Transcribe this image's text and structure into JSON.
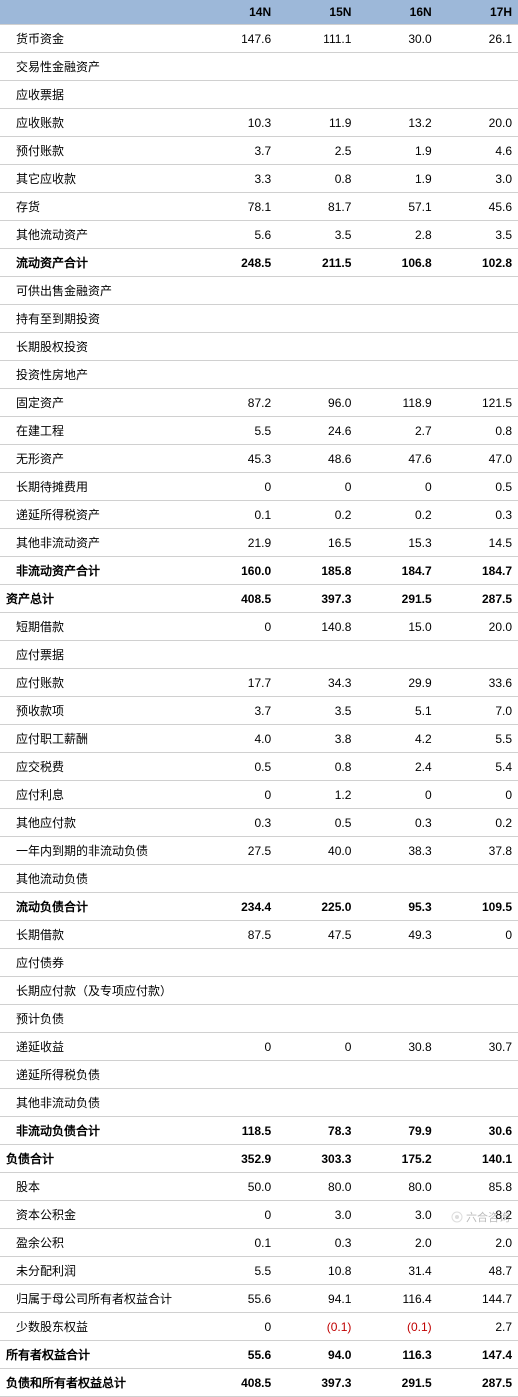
{
  "table": {
    "header_bg": "#9db8d9",
    "row_line_color": "#d0d0d0",
    "text_color": "#000000",
    "neg_color": "#c00000",
    "col_widths": [
      "38%",
      "15.5%",
      "15.5%",
      "15.5%",
      "15.5%"
    ],
    "columns": [
      "",
      "14N",
      "15N",
      "16N",
      "17H"
    ],
    "rows": [
      {
        "label": "货币资金",
        "vals": [
          "147.6",
          "111.1",
          "30.0",
          "26.1"
        ],
        "indent": true
      },
      {
        "label": "交易性金融资产",
        "vals": [
          "",
          "",
          "",
          ""
        ],
        "indent": true
      },
      {
        "label": "应收票据",
        "vals": [
          "",
          "",
          "",
          ""
        ],
        "indent": true
      },
      {
        "label": "应收账款",
        "vals": [
          "10.3",
          "11.9",
          "13.2",
          "20.0"
        ],
        "indent": true
      },
      {
        "label": "预付账款",
        "vals": [
          "3.7",
          "2.5",
          "1.9",
          "4.6"
        ],
        "indent": true
      },
      {
        "label": "其它应收款",
        "vals": [
          "3.3",
          "0.8",
          "1.9",
          "3.0"
        ],
        "indent": true
      },
      {
        "label": "存货",
        "vals": [
          "78.1",
          "81.7",
          "57.1",
          "45.6"
        ],
        "indent": true
      },
      {
        "label": "其他流动资产",
        "vals": [
          "5.6",
          "3.5",
          "2.8",
          "3.5"
        ],
        "indent": true
      },
      {
        "label": "流动资产合计",
        "vals": [
          "248.5",
          "211.5",
          "106.8",
          "102.8"
        ],
        "bold": true,
        "indent": true
      },
      {
        "label": "可供出售金融资产",
        "vals": [
          "",
          "",
          "",
          ""
        ],
        "indent": true
      },
      {
        "label": "持有至到期投资",
        "vals": [
          "",
          "",
          "",
          ""
        ],
        "indent": true
      },
      {
        "label": "长期股权投资",
        "vals": [
          "",
          "",
          "",
          ""
        ],
        "indent": true
      },
      {
        "label": "投资性房地产",
        "vals": [
          "",
          "",
          "",
          ""
        ],
        "indent": true
      },
      {
        "label": "固定资产",
        "vals": [
          "87.2",
          "96.0",
          "118.9",
          "121.5"
        ],
        "indent": true
      },
      {
        "label": "在建工程",
        "vals": [
          "5.5",
          "24.6",
          "2.7",
          "0.8"
        ],
        "indent": true
      },
      {
        "label": "无形资产",
        "vals": [
          "45.3",
          "48.6",
          "47.6",
          "47.0"
        ],
        "indent": true
      },
      {
        "label": "长期待摊费用",
        "vals": [
          "0",
          "0",
          "0",
          "0.5"
        ],
        "indent": true
      },
      {
        "label": "递延所得税资产",
        "vals": [
          "0.1",
          "0.2",
          "0.2",
          "0.3"
        ],
        "indent": true
      },
      {
        "label": "其他非流动资产",
        "vals": [
          "21.9",
          "16.5",
          "15.3",
          "14.5"
        ],
        "indent": true
      },
      {
        "label": "非流动资产合计",
        "vals": [
          "160.0",
          "185.8",
          "184.7",
          "184.7"
        ],
        "bold": true,
        "indent": true
      },
      {
        "label": "资产总计",
        "vals": [
          "408.5",
          "397.3",
          "291.5",
          "287.5"
        ],
        "bold": true
      },
      {
        "label": "短期借款",
        "vals": [
          "0",
          "140.8",
          "15.0",
          "20.0"
        ],
        "indent": true
      },
      {
        "label": "应付票据",
        "vals": [
          "",
          "",
          "",
          ""
        ],
        "indent": true
      },
      {
        "label": "应付账款",
        "vals": [
          "17.7",
          "34.3",
          "29.9",
          "33.6"
        ],
        "indent": true
      },
      {
        "label": "预收款项",
        "vals": [
          "3.7",
          "3.5",
          "5.1",
          "7.0"
        ],
        "indent": true
      },
      {
        "label": "应付职工薪酬",
        "vals": [
          "4.0",
          "3.8",
          "4.2",
          "5.5"
        ],
        "indent": true
      },
      {
        "label": "应交税费",
        "vals": [
          "0.5",
          "0.8",
          "2.4",
          "5.4"
        ],
        "indent": true
      },
      {
        "label": "应付利息",
        "vals": [
          "0",
          "1.2",
          "0",
          "0"
        ],
        "indent": true
      },
      {
        "label": "其他应付款",
        "vals": [
          "0.3",
          "0.5",
          "0.3",
          "0.2"
        ],
        "indent": true
      },
      {
        "label": "一年内到期的非流动负债",
        "vals": [
          "27.5",
          "40.0",
          "38.3",
          "37.8"
        ],
        "indent": true
      },
      {
        "label": "其他流动负债",
        "vals": [
          "",
          "",
          "",
          ""
        ],
        "indent": true
      },
      {
        "label": "流动负债合计",
        "vals": [
          "234.4",
          "225.0",
          "95.3",
          "109.5"
        ],
        "bold": true,
        "indent": true
      },
      {
        "label": "长期借款",
        "vals": [
          "87.5",
          "47.5",
          "49.3",
          "0"
        ],
        "indent": true
      },
      {
        "label": "应付债券",
        "vals": [
          "",
          "",
          "",
          ""
        ],
        "indent": true
      },
      {
        "label": "长期应付款（及专项应付款）",
        "vals": [
          "",
          "",
          "",
          ""
        ],
        "indent": true
      },
      {
        "label": "预计负债",
        "vals": [
          "",
          "",
          "",
          ""
        ],
        "indent": true
      },
      {
        "label": "递延收益",
        "vals": [
          "0",
          "0",
          "30.8",
          "30.7"
        ],
        "indent": true
      },
      {
        "label": "递延所得税负债",
        "vals": [
          "",
          "",
          "",
          ""
        ],
        "indent": true
      },
      {
        "label": "其他非流动负债",
        "vals": [
          "",
          "",
          "",
          ""
        ],
        "indent": true
      },
      {
        "label": "非流动负债合计",
        "vals": [
          "118.5",
          "78.3",
          "79.9",
          "30.6"
        ],
        "bold": true,
        "indent": true
      },
      {
        "label": "负债合计",
        "vals": [
          "352.9",
          "303.3",
          "175.2",
          "140.1"
        ],
        "bold": true
      },
      {
        "label": "股本",
        "vals": [
          "50.0",
          "80.0",
          "80.0",
          "85.8"
        ],
        "indent": true
      },
      {
        "label": "资本公积金",
        "vals": [
          "0",
          "3.0",
          "3.0",
          "8.2"
        ],
        "indent": true
      },
      {
        "label": "盈余公积",
        "vals": [
          "0.1",
          "0.3",
          "2.0",
          "2.0"
        ],
        "indent": true
      },
      {
        "label": "未分配利润",
        "vals": [
          "5.5",
          "10.8",
          "31.4",
          "48.7"
        ],
        "indent": true
      },
      {
        "label": "归属于母公司所有者权益合计",
        "vals": [
          "55.6",
          "94.1",
          "116.4",
          "144.7"
        ],
        "indent": true
      },
      {
        "label": "少数股东权益",
        "vals": [
          "0",
          "(0.1)",
          "(0.1)",
          "2.7"
        ],
        "indent": true,
        "neg_idx": [
          1,
          2
        ]
      },
      {
        "label": "所有者权益合计",
        "vals": [
          "55.6",
          "94.0",
          "116.3",
          "147.4"
        ],
        "bold": true
      },
      {
        "label": "负债和所有者权益总计",
        "vals": [
          "408.5",
          "397.3",
          "291.5",
          "287.5"
        ],
        "bold": true
      }
    ]
  },
  "watermark": {
    "text": "六合咨询",
    "icon_color": "#808080"
  }
}
